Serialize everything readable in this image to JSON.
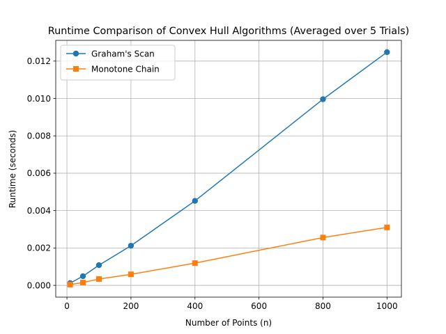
{
  "chart_data": {
    "type": "line",
    "title": "Runtime Comparison of Convex Hull Algorithms (Averaged over 5 Trials)",
    "xlabel": "Number of Points (n)",
    "ylabel": "Runtime (seconds)",
    "xlim": [
      -35,
      1045
    ],
    "ylim": [
      -0.00063,
      0.01311
    ],
    "xticks": [
      0,
      200,
      400,
      600,
      800,
      1000
    ],
    "xtick_labels": [
      "0",
      "200",
      "400",
      "600",
      "800",
      "1000"
    ],
    "yticks": [
      0,
      0.002,
      0.004,
      0.006,
      0.008,
      0.01,
      0.012
    ],
    "ytick_labels": [
      "0.000",
      "0.002",
      "0.004",
      "0.006",
      "0.008",
      "0.010",
      "0.012"
    ],
    "grid": true,
    "legend_position": "top-left",
    "x": [
      10,
      50,
      100,
      200,
      400,
      800,
      1000
    ],
    "series": [
      {
        "name": "Graham's Scan",
        "marker": "circle",
        "color": "#1f77b4",
        "values": [
          0.00012,
          0.00049,
          0.00108,
          0.00212,
          0.00452,
          0.00996,
          0.01248
        ]
      },
      {
        "name": "Monotone Chain",
        "marker": "square",
        "color": "#ff7f0e",
        "values": [
          4e-05,
          0.00015,
          0.00034,
          0.00059,
          0.00119,
          0.00256,
          0.0031
        ]
      }
    ]
  }
}
